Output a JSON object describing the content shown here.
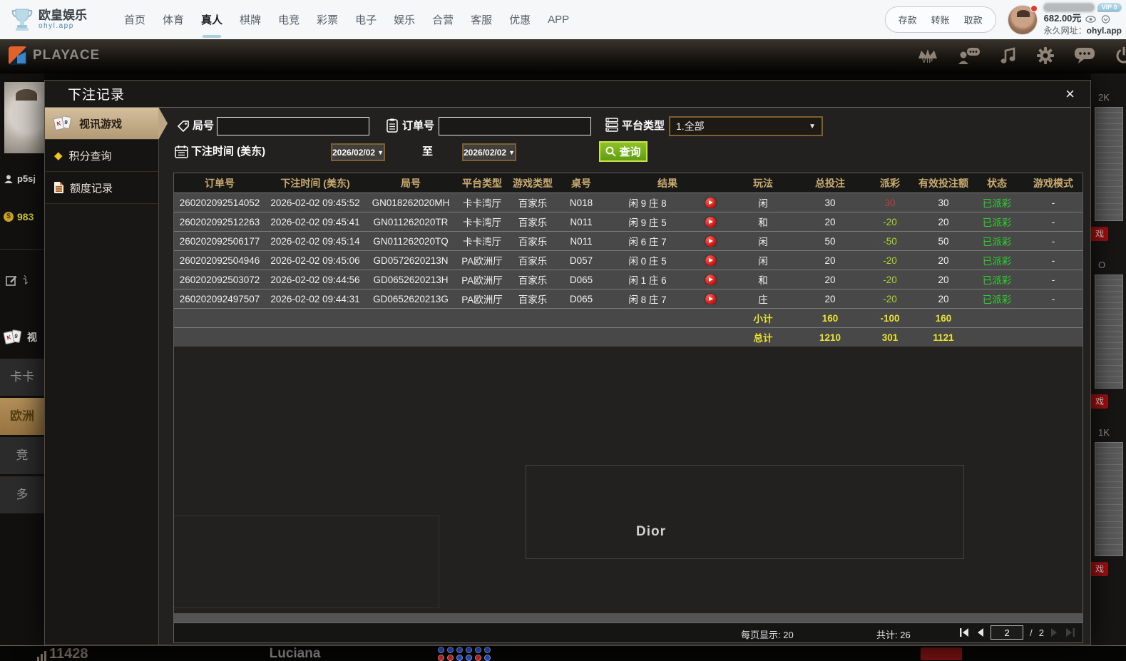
{
  "navbar": {
    "brand": {
      "name": "欧皇娱乐",
      "domain": "ohyl.app"
    },
    "items": [
      "首页",
      "体育",
      "真人",
      "棋牌",
      "电竞",
      "彩票",
      "电子",
      "娱乐",
      "合营",
      "客服",
      "优惠",
      "APP"
    ],
    "wallet": {
      "deposit": "存款",
      "transfer": "转账",
      "withdraw": "取款"
    },
    "user": {
      "vip_badge": "VIP 0",
      "balance": "682.00元",
      "url_label": "永久网址：",
      "url": "ohyl.app"
    }
  },
  "platform_bar": {
    "logo": "PlayAce",
    "vip_label": "VIP"
  },
  "modal": {
    "title": "下注记录",
    "sidebar": [
      {
        "label": "视讯游戏",
        "active": true
      },
      {
        "label": "积分查询",
        "active": false
      },
      {
        "label": "额度记录",
        "active": false
      }
    ],
    "filters": {
      "round_label": "局号",
      "order_label": "订单号",
      "platform_label": "平台类型",
      "platform_value": "1.全部",
      "time_label": "下注时间 (美东)",
      "date_from": "2026/02/02",
      "to_label": "至",
      "date_to": "2026/02/02",
      "search_label": "查询"
    },
    "table": {
      "headers": [
        "订单号",
        "下注时间 (美东)",
        "局号",
        "平台类型",
        "游戏类型",
        "桌号",
        "结果",
        "玩法",
        "总投注",
        "派彩",
        "有效投注额",
        "状态",
        "游戏模式"
      ],
      "rows": [
        {
          "order_id": "260202092514052",
          "time": "2026-02-02 09:45:52",
          "round": "GN018262020MH",
          "platform": "卡卡湾厅",
          "game": "百家乐",
          "table_no": "N018",
          "result": "闲 9 庄 8",
          "bet_type": "闲",
          "total_bet": "30",
          "payout": "30",
          "payout_sign": "pos",
          "valid_bet": "30",
          "status": "已派彩",
          "mode": "-"
        },
        {
          "order_id": "260202092512263",
          "time": "2026-02-02 09:45:41",
          "round": "GN011262020TR",
          "platform": "卡卡湾厅",
          "game": "百家乐",
          "table_no": "N011",
          "result": "闲 9 庄 5",
          "bet_type": "和",
          "total_bet": "20",
          "payout": "-20",
          "payout_sign": "neg",
          "valid_bet": "20",
          "status": "已派彩",
          "mode": "-"
        },
        {
          "order_id": "260202092506177",
          "time": "2026-02-02 09:45:14",
          "round": "GN011262020TQ",
          "platform": "卡卡湾厅",
          "game": "百家乐",
          "table_no": "N011",
          "result": "闲 6 庄 7",
          "bet_type": "闲",
          "total_bet": "50",
          "payout": "-50",
          "payout_sign": "neg",
          "valid_bet": "50",
          "status": "已派彩",
          "mode": "-"
        },
        {
          "order_id": "260202092504946",
          "time": "2026-02-02 09:45:06",
          "round": "GD0572620213N",
          "platform": "PA欧洲厅",
          "game": "百家乐",
          "table_no": "D057",
          "result": "闲 0 庄 5",
          "bet_type": "闲",
          "total_bet": "20",
          "payout": "-20",
          "payout_sign": "neg",
          "valid_bet": "20",
          "status": "已派彩",
          "mode": "-"
        },
        {
          "order_id": "260202092503072",
          "time": "2026-02-02 09:44:56",
          "round": "GD0652620213H",
          "platform": "PA欧洲厅",
          "game": "百家乐",
          "table_no": "D065",
          "result": "闲 1 庄 6",
          "bet_type": "和",
          "total_bet": "20",
          "payout": "-20",
          "payout_sign": "neg",
          "valid_bet": "20",
          "status": "已派彩",
          "mode": "-"
        },
        {
          "order_id": "260202092497507",
          "time": "2026-02-02 09:44:31",
          "round": "GD0652620213G",
          "platform": "PA欧洲厅",
          "game": "百家乐",
          "table_no": "D065",
          "result": "闲 8 庄 7",
          "bet_type": "庄",
          "total_bet": "20",
          "payout": "-20",
          "payout_sign": "neg",
          "valid_bet": "20",
          "status": "已派彩",
          "mode": "-"
        }
      ],
      "subtotal": {
        "label": "小计",
        "total_bet": "160",
        "payout": "-100",
        "valid_bet": "160"
      },
      "grand_total": {
        "label": "总计",
        "total_bet": "1210",
        "payout": "301",
        "valid_bet": "1121"
      }
    },
    "pagination": {
      "per_page": "每页显示: 20",
      "total": "共计: 26",
      "page": "2",
      "sep": "/",
      "pages": "2"
    }
  },
  "background": {
    "left_panel": {
      "username": "p5sj",
      "points": "983",
      "edit_hint": "讠",
      "cards_label": "视",
      "menu": [
        "卡卡",
        "欧洲",
        "竞",
        "多"
      ]
    },
    "bottom": {
      "count": "11428",
      "dealer": "Luciana",
      "beads": [
        [
          "b",
          "b",
          "b",
          "b",
          "b",
          "b"
        ],
        [
          "r",
          "r",
          "b",
          "b",
          "r",
          "b"
        ]
      ]
    },
    "right_strip": {
      "labels": [
        "2K",
        "O",
        "1K"
      ],
      "badge": "戏"
    },
    "ghosts": {
      "dealer": "Dior"
    }
  },
  "icons": {
    "close": "×",
    "dropdown": "▼",
    "diamond": "◆",
    "coin": "$"
  },
  "colors": {
    "accent_green": "#76ac1c",
    "table_gold": "#c9ab72",
    "payout_positive": "#c23b3b",
    "payout_negative": "#a6d827",
    "status_green": "#2fd32f",
    "totals_yellow": "#e9e334",
    "sidebar_active_tan": "#c3ab85",
    "nav_underline_blue": "#a9cedd"
  }
}
